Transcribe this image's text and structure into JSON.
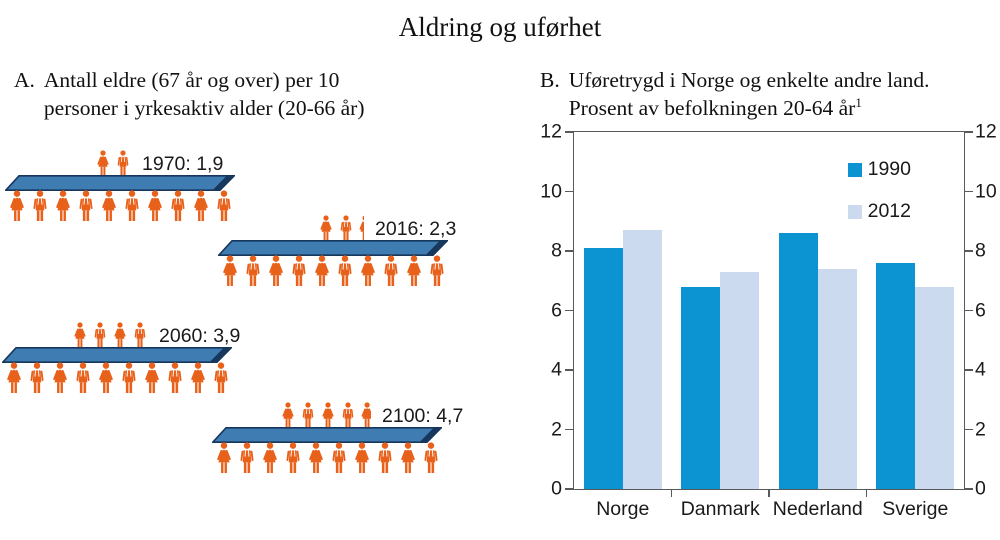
{
  "main_title": "Aldring og uførhet",
  "panel_a": {
    "prefix": "A.",
    "title_line1": "Antall eldre (67 år og over) per 10",
    "title_line2": "personer i yrkesaktiv alder (20-66 år)",
    "colors": {
      "person": "#e8611b",
      "plank_fill": "#3e7cb2",
      "plank_edge": "#17375d"
    },
    "groups": [
      {
        "label": "1970: 1,9",
        "value": 1.9,
        "top": [
          "woman",
          "man"
        ],
        "partial": null,
        "bottom_count": 10
      },
      {
        "label": "2016: 2,3",
        "value": 2.3,
        "top": [
          "woman",
          "man"
        ],
        "partial": 0.3,
        "bottom_count": 10
      },
      {
        "label": "2060: 3,9",
        "value": 3.9,
        "top": [
          "woman",
          "man",
          "woman",
          "man"
        ],
        "partial": null,
        "bottom_count": 10
      },
      {
        "label": "2100: 4,7",
        "value": 4.7,
        "top": [
          "woman",
          "man",
          "woman",
          "man"
        ],
        "partial": 0.7,
        "bottom_count": 10
      }
    ]
  },
  "panel_b": {
    "prefix": "B.",
    "title_line1": "Uføretrygd i Norge og enkelte andre land.",
    "title_line2": "Prosent av befolkningen 20-64 år",
    "title_sup": "1"
  },
  "chart_data": [
    {
      "type": "pictogram",
      "title": "Antall eldre (67 år og over) per 10 personer i yrkesaktiv alder (20-66 år)",
      "points": [
        {
          "year": "1970",
          "value": 1.9,
          "label": "1970: 1,9"
        },
        {
          "year": "2016",
          "value": 2.3,
          "label": "2016: 2,3"
        },
        {
          "year": "2060",
          "value": 3.9,
          "label": "2060: 3,9"
        },
        {
          "year": "2100",
          "value": 4.7,
          "label": "2100: 4,7"
        }
      ],
      "base_per_group": 10
    },
    {
      "type": "bar",
      "title": "Uføretrygd i Norge og enkelte andre land. Prosent av befolkningen 20-64 år",
      "categories": [
        "Norge",
        "Danmark",
        "Nederland",
        "Sverige"
      ],
      "series": [
        {
          "name": "1990",
          "color": "#0b94d1",
          "values": [
            8.1,
            6.8,
            8.6,
            7.6
          ]
        },
        {
          "name": "2012",
          "color": "#ccdaef",
          "values": [
            8.7,
            7.3,
            7.4,
            6.8
          ]
        }
      ],
      "ylim": [
        0,
        12
      ],
      "yticks": [
        0,
        2,
        4,
        6,
        8,
        10,
        12
      ],
      "grid": false,
      "legend_position": "top-right",
      "axis_labels_both_sides": true
    }
  ]
}
